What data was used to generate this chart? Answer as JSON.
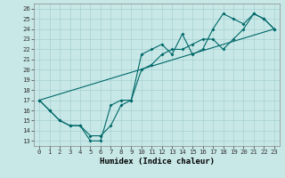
{
  "xlabel": "Humidex (Indice chaleur)",
  "bg_color": "#c8e8e8",
  "grid_color": "#a8d0d0",
  "line_color": "#006868",
  "xlim": [
    -0.5,
    23.5
  ],
  "ylim": [
    12.5,
    26.5
  ],
  "xticks": [
    0,
    1,
    2,
    3,
    4,
    5,
    6,
    7,
    8,
    9,
    10,
    11,
    12,
    13,
    14,
    15,
    16,
    17,
    18,
    19,
    20,
    21,
    22,
    23
  ],
  "yticks": [
    13,
    14,
    15,
    16,
    17,
    18,
    19,
    20,
    21,
    22,
    23,
    24,
    25,
    26
  ],
  "line1_x": [
    0,
    1,
    2,
    3,
    4,
    5,
    6,
    7,
    8,
    9,
    10,
    11,
    12,
    13,
    14,
    15,
    16,
    17,
    18,
    19,
    20,
    21,
    22,
    23
  ],
  "line1_y": [
    17,
    16,
    15,
    14.5,
    14.5,
    13,
    13,
    16.5,
    17,
    17,
    21.5,
    22,
    22.5,
    21.5,
    23.5,
    21.5,
    22,
    24,
    25.5,
    25,
    24.5,
    25.5,
    25,
    24
  ],
  "line2_x": [
    0,
    1,
    2,
    3,
    4,
    5,
    6,
    7,
    8,
    9,
    10,
    11,
    12,
    13,
    14,
    15,
    16,
    17,
    18,
    19,
    20,
    21,
    22,
    23
  ],
  "line2_y": [
    17,
    16,
    15,
    14.5,
    14.5,
    13.5,
    13.5,
    14.5,
    16.5,
    17,
    20,
    20.5,
    21.5,
    22,
    22,
    22.5,
    23,
    23,
    22,
    23,
    24,
    25.5,
    25,
    24
  ],
  "line3_x": [
    0,
    23
  ],
  "line3_y": [
    17,
    24
  ],
  "xlabel_fontsize": 6.5,
  "tick_fontsize": 5.2
}
